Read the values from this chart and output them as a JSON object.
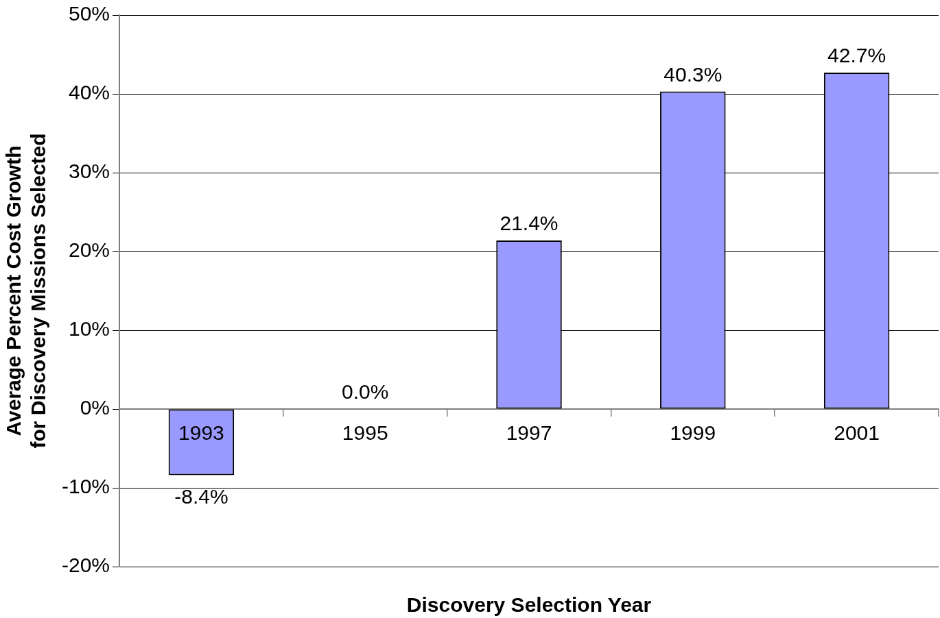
{
  "chart_data": {
    "type": "bar",
    "xlabel": "Discovery Selection Year",
    "ylabel": "Average Percent Cost Growth for Discovery Missions Selected",
    "categories": [
      "1993",
      "1995",
      "1997",
      "1999",
      "2001"
    ],
    "values": [
      -8.4,
      0.0,
      21.4,
      40.3,
      42.7
    ],
    "value_labels": [
      "-8.4%",
      "0.0%",
      "21.4%",
      "40.3%",
      "42.7%"
    ],
    "color": "#9999ff",
    "ylim": [
      -20,
      50
    ],
    "yticks": [
      {
        "value": -20,
        "label": "-20%"
      },
      {
        "value": -10,
        "label": "-10%"
      },
      {
        "value": 0,
        "label": "0%"
      },
      {
        "value": 10,
        "label": "10%"
      },
      {
        "value": 20,
        "label": "20%"
      },
      {
        "value": 30,
        "label": "30%"
      },
      {
        "value": 40,
        "label": "40%"
      },
      {
        "value": 50,
        "label": "50%"
      }
    ],
    "grid": "y",
    "legend": false
  }
}
